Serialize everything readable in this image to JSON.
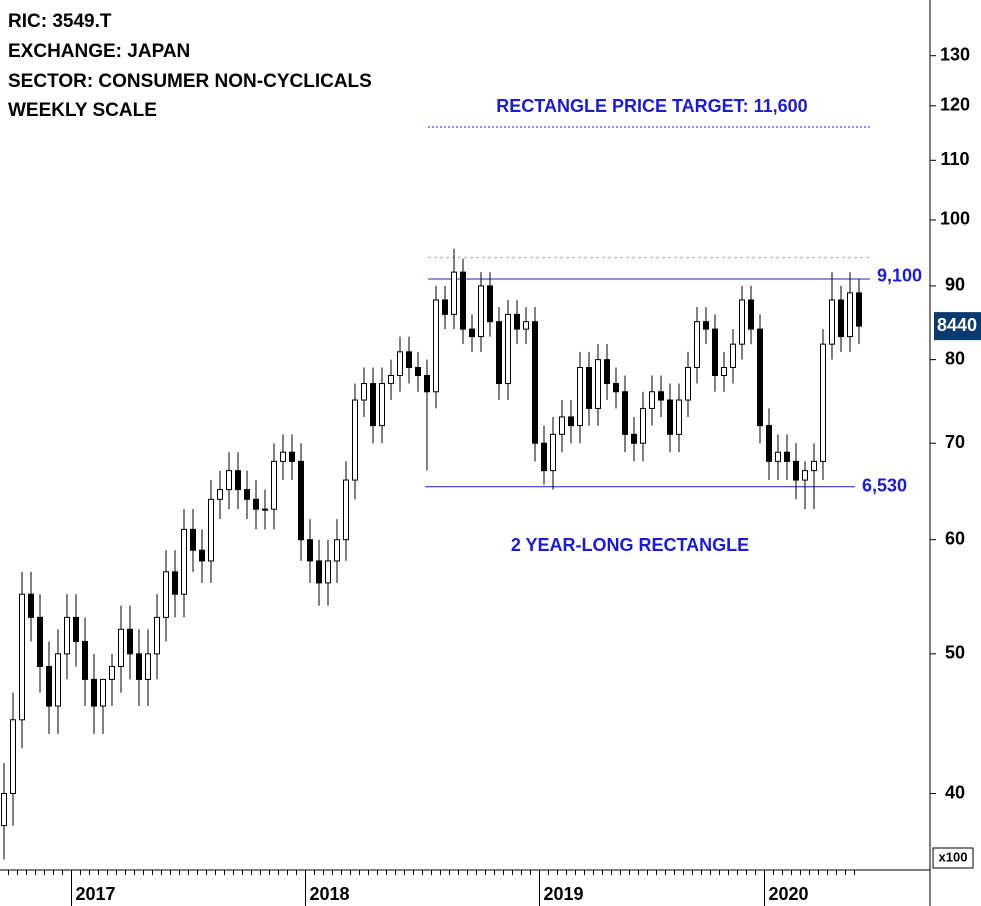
{
  "chart_data": {
    "type": "candlestick",
    "header": [
      "RIC: 3549.T",
      "EXCHANGE: JAPAN",
      "SECTOR: CONSUMER NON-CYCLICALS",
      "WEEKLY SCALE"
    ],
    "categories": [
      null,
      null,
      null,
      null,
      null,
      null,
      null,
      null,
      "2017",
      null,
      null,
      null,
      null,
      null,
      null,
      null,
      null,
      null,
      null,
      null,
      null,
      null,
      null,
      null,
      null,
      null,
      null,
      null,
      null,
      null,
      null,
      null,
      null,
      null,
      "2018",
      null,
      null,
      null,
      null,
      null,
      null,
      null,
      null,
      null,
      null,
      null,
      null,
      null,
      null,
      null,
      null,
      null,
      null,
      null,
      null,
      null,
      null,
      null,
      null,
      null,
      "2019",
      null,
      null,
      null,
      null,
      null,
      null,
      null,
      null,
      null,
      null,
      null,
      null,
      null,
      null,
      null,
      null,
      null,
      null,
      null,
      null,
      null,
      null,
      null,
      null,
      "2020",
      null,
      null,
      null,
      null,
      null,
      null,
      null,
      null,
      null,
      null
    ],
    "open": [
      38,
      40,
      45,
      55,
      53,
      49,
      46,
      50,
      53,
      51,
      48,
      46,
      48,
      49,
      52,
      50,
      48,
      50,
      53,
      57,
      55,
      61,
      59,
      58,
      64,
      65,
      67,
      65,
      64,
      63,
      63,
      68,
      69,
      68,
      60,
      58,
      56,
      58,
      60,
      66,
      75,
      77,
      72,
      77,
      78,
      81,
      79,
      78,
      76,
      88,
      86,
      92,
      84,
      83,
      90,
      85,
      77,
      86,
      84,
      85,
      70,
      67,
      71,
      73,
      72,
      79,
      74,
      80,
      77,
      76,
      71,
      70,
      74,
      76,
      75,
      71,
      75,
      79,
      85,
      84,
      78,
      79,
      82,
      88,
      84,
      72,
      68,
      69,
      68,
      66,
      67,
      68,
      82,
      88,
      83,
      89
    ],
    "high": [
      42,
      47,
      57,
      57,
      55,
      51,
      52,
      55,
      55,
      53,
      50,
      48,
      50,
      54,
      54,
      52,
      52,
      55,
      59,
      59,
      63,
      63,
      61,
      66,
      67,
      69,
      69,
      67,
      66,
      65,
      70,
      71,
      71,
      70,
      62,
      60,
      60,
      62,
      68,
      77,
      79,
      79,
      79,
      80,
      83,
      83,
      81,
      80,
      90,
      90,
      95.5,
      94,
      86,
      92,
      92,
      87,
      88,
      88,
      87,
      87,
      72,
      73,
      75,
      75,
      81,
      81,
      82,
      82,
      79,
      78,
      73,
      76,
      78,
      78,
      77,
      77,
      81,
      87,
      87,
      86,
      81,
      84,
      90,
      90,
      86,
      74,
      71,
      71,
      70,
      68,
      70,
      84,
      92,
      90,
      92,
      91
    ],
    "low": [
      36,
      38,
      43,
      51,
      47,
      44,
      44,
      48,
      49,
      46,
      44,
      44,
      46,
      47,
      48,
      46,
      46,
      48,
      51,
      53,
      53,
      57,
      56,
      56,
      62,
      63,
      63,
      62,
      61,
      61,
      61,
      66,
      66,
      58,
      56,
      54,
      54,
      56,
      58,
      64,
      73,
      70,
      70,
      75,
      76,
      77,
      76,
      67,
      74,
      84,
      84,
      82,
      81,
      81,
      83,
      75,
      75,
      82,
      82,
      68,
      65.5,
      65,
      69,
      70,
      70,
      72,
      72,
      75,
      74,
      69,
      68,
      68,
      72,
      73,
      69,
      69,
      73,
      77,
      82,
      76,
      76,
      77,
      80,
      82,
      70,
      66,
      66,
      66,
      64,
      63,
      63,
      66,
      80,
      81,
      81,
      82
    ],
    "close": [
      40,
      45,
      55,
      53,
      49,
      46,
      50,
      53,
      51,
      48,
      46,
      48,
      49,
      52,
      50,
      48,
      50,
      53,
      57,
      55,
      61,
      59,
      58,
      64,
      65,
      67,
      65,
      64,
      63,
      63,
      68,
      69,
      68,
      60,
      58,
      56,
      58,
      60,
      66,
      75,
      77,
      72,
      77,
      78,
      81,
      79,
      78,
      76,
      88,
      86,
      92,
      84,
      83,
      90,
      85,
      77,
      86,
      84,
      85,
      70,
      67,
      71,
      73,
      72,
      79,
      74,
      80,
      77,
      76,
      71,
      70,
      74,
      76,
      75,
      71,
      75,
      79,
      85,
      84,
      78,
      79,
      82,
      88,
      84,
      72,
      68,
      69,
      68,
      66,
      67,
      68,
      82,
      88,
      83,
      89,
      84.4
    ],
    "last_price": {
      "value": 84.4,
      "label": "8440"
    },
    "ylim": [
      35.4,
      142.1
    ],
    "log_scale": true,
    "yticks": [
      40,
      50,
      60,
      70,
      80,
      90,
      100,
      110,
      120,
      130
    ],
    "y_unit_label": "x100",
    "resistance": {
      "value": 91,
      "label": "9,100"
    },
    "support": {
      "value": 65.3,
      "label": "6,530"
    },
    "target": {
      "value": 116,
      "label": "RECTANGLE PRICE TARGET: 11,600"
    },
    "prior_high": 94.2,
    "annotation": "2 YEAR-LONG RECTANGLE",
    "up_color": "#ffffff",
    "down_color": "#000000",
    "level_color": "#1c1ccc"
  }
}
